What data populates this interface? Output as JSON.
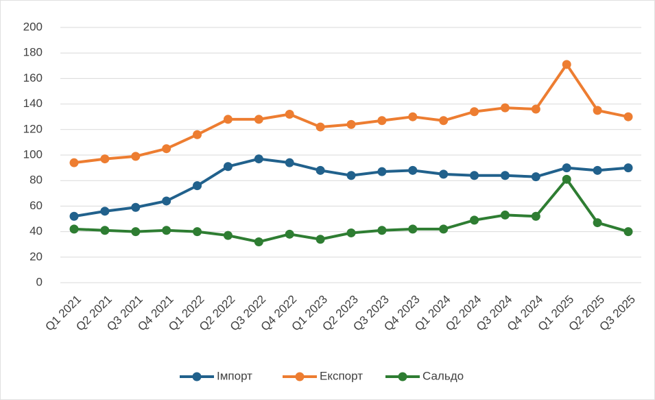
{
  "chart_data": {
    "type": "line",
    "categories": [
      "Q1 2021",
      "Q2 2021",
      "Q3 2021",
      "Q4 2021",
      "Q1 2022",
      "Q2 2022",
      "Q3 2022",
      "Q4 2022",
      "Q1 2023",
      "Q2 2023",
      "Q3 2023",
      "Q4 2023",
      "Q1 2024",
      "Q2 2024",
      "Q3 2024",
      "Q4 2024",
      "Q1 2025",
      "Q2 2025",
      "Q3 2025"
    ],
    "series": [
      {
        "name": "Імпорт",
        "color": "#21618c",
        "values": [
          52,
          56,
          59,
          64,
          76,
          91,
          97,
          94,
          88,
          84,
          87,
          88,
          85,
          84,
          84,
          83,
          90,
          88,
          90
        ]
      },
      {
        "name": "Експорт",
        "color": "#ed7d31",
        "values": [
          94,
          97,
          99,
          105,
          116,
          128,
          128,
          132,
          122,
          124,
          127,
          130,
          127,
          134,
          137,
          136,
          171,
          135,
          130
        ]
      },
      {
        "name": "Сальдо",
        "color": "#2e7d32",
        "values": [
          42,
          41,
          40,
          41,
          40,
          37,
          32,
          38,
          34,
          39,
          41,
          42,
          42,
          49,
          53,
          52,
          81,
          47,
          40
        ]
      }
    ],
    "ylim": [
      0,
      200
    ],
    "yticks": [
      0,
      20,
      40,
      60,
      80,
      100,
      120,
      140,
      160,
      180,
      200
    ],
    "grid": true,
    "legend": "bottom"
  }
}
